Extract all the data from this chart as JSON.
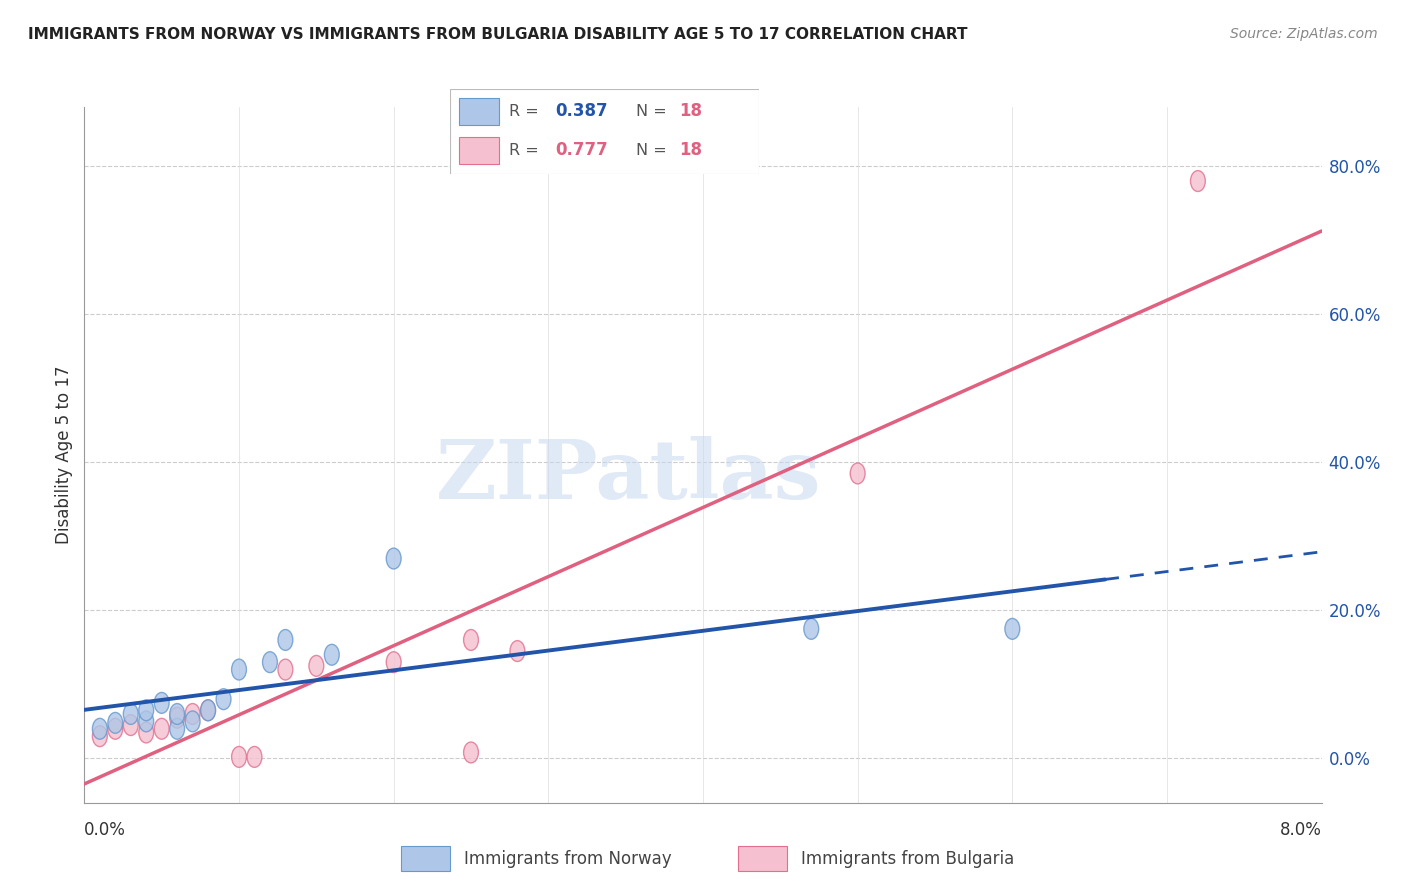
{
  "title": "IMMIGRANTS FROM NORWAY VS IMMIGRANTS FROM BULGARIA DISABILITY AGE 5 TO 17 CORRELATION CHART",
  "source": "Source: ZipAtlas.com",
  "ylabel": "Disability Age 5 to 17",
  "watermark": "ZIPatlas",
  "norway_color": "#aec6e8",
  "norway_edge": "#6699cc",
  "norway_line_color": "#2255aa",
  "bulgaria_color": "#f5c0d0",
  "bulgaria_edge": "#e07090",
  "bulgaria_line_color": "#e06080",
  "norway_R": "0.387",
  "norway_N": "18",
  "bulgaria_R": "0.777",
  "bulgaria_N": "18",
  "xlim": [
    0.0,
    0.08
  ],
  "ylim": [
    -0.06,
    0.88
  ],
  "ytick_vals": [
    0.0,
    0.2,
    0.4,
    0.6,
    0.8
  ],
  "norway_x": [
    0.001,
    0.002,
    0.003,
    0.004,
    0.004,
    0.005,
    0.006,
    0.006,
    0.007,
    0.008,
    0.009,
    0.01,
    0.012,
    0.013,
    0.016,
    0.02,
    0.047,
    0.06
  ],
  "norway_y": [
    0.04,
    0.048,
    0.06,
    0.05,
    0.065,
    0.075,
    0.04,
    0.06,
    0.05,
    0.065,
    0.08,
    0.12,
    0.13,
    0.16,
    0.14,
    0.27,
    0.175,
    0.175
  ],
  "bulgaria_x": [
    0.001,
    0.002,
    0.003,
    0.004,
    0.005,
    0.006,
    0.007,
    0.008,
    0.01,
    0.011,
    0.013,
    0.015,
    0.02,
    0.025,
    0.025,
    0.028,
    0.05,
    0.072
  ],
  "bulgaria_y": [
    0.03,
    0.04,
    0.045,
    0.035,
    0.04,
    0.055,
    0.06,
    0.065,
    0.002,
    0.002,
    0.12,
    0.125,
    0.13,
    0.008,
    0.16,
    0.145,
    0.385,
    0.78
  ],
  "norway_trend_x0": 0.0,
  "norway_trend_x1": 0.066,
  "norway_trend_xdash0": 0.066,
  "norway_trend_xdash1": 0.082,
  "bulgaria_trend_x0": 0.0,
  "bulgaria_trend_x1": 0.08,
  "dpi": 100,
  "figsize": [
    14.06,
    8.92
  ]
}
